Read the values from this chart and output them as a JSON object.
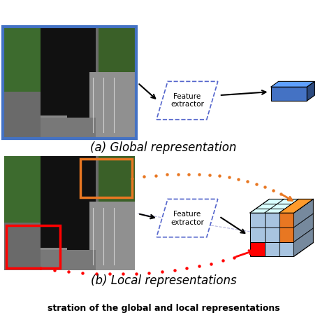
{
  "title_a": "(a) Global representation",
  "title_b": "(b) Local representations",
  "caption": "stration of the global and local representations",
  "blue_color": "#4472C4",
  "orange_color": "#E87722",
  "red_color": "#FF0000",
  "light_blue": "#A8C4E0",
  "bg_color": "#FFFFFF",
  "feature_extractor_text": "Feature\nextractor",
  "figsize": [
    4.68,
    4.5
  ],
  "dpi": 100
}
